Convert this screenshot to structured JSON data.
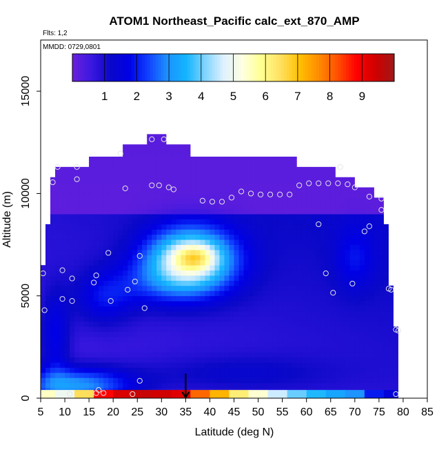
{
  "chart_data": {
    "type": "heatmap",
    "title": "ATOM1 Northeast_Pacific calc_ext_870_AMP",
    "annotations": [
      "Flts: 1,2",
      "MMDD: 0729,0801"
    ],
    "xlabel": "Latitude (deg N)",
    "ylabel": "Altitude (m)",
    "xlim": [
      5,
      85
    ],
    "ylim": [
      0,
      17500
    ],
    "x_ticks": [
      5,
      10,
      15,
      20,
      25,
      30,
      35,
      40,
      45,
      50,
      55,
      60,
      65,
      70,
      75,
      80,
      85
    ],
    "y_ticks": [
      0,
      5000,
      10000,
      15000
    ],
    "colorbar": {
      "min": 0,
      "max": 10,
      "tick_values": [
        1,
        2,
        3,
        4,
        5,
        6,
        7,
        8,
        9
      ],
      "tick_labels": [
        "1",
        "2",
        "3",
        "4",
        "5",
        "6",
        "7",
        "8",
        "9"
      ],
      "colors": [
        "#6a1fdc",
        "#3b18e0",
        "#0a08c8",
        "#0000e6",
        "#1040ff",
        "#1e90ff",
        "#12b4ff",
        "#7fd4ff",
        "#dff1ff",
        "#ffffe0",
        "#ffff90",
        "#ffe060",
        "#ffc000",
        "#ff8c00",
        "#ff5000",
        "#ff0000",
        "#d00000",
        "#a01818"
      ]
    },
    "field_blobs": [
      {
        "x": 36,
        "y": 6800,
        "sx": 9,
        "sy": 1500,
        "value": 4.2
      },
      {
        "x": 37,
        "y": 6900,
        "sx": 4,
        "sy": 600,
        "value": 1.5
      },
      {
        "x": 30,
        "y": 5600,
        "sx": 12,
        "sy": 1200,
        "value": 1.0
      },
      {
        "x": 12,
        "y": 600,
        "sx": 12,
        "sy": 900,
        "value": 2.6
      },
      {
        "x": 8,
        "y": 3000,
        "sx": 3,
        "sy": 2200,
        "value": 1.2
      },
      {
        "x": 18,
        "y": 4800,
        "sx": 6,
        "sy": 1300,
        "value": 1.0
      },
      {
        "x": 70,
        "y": 6800,
        "sx": 4,
        "sy": 1500,
        "value": 0.8
      },
      {
        "x": 45,
        "y": 1200,
        "sx": 20,
        "sy": 900,
        "value": 0.6
      }
    ],
    "surface_row": [
      {
        "x": 6,
        "value": 5.5
      },
      {
        "x": 10,
        "value": 5.0
      },
      {
        "x": 14,
        "value": 6.5
      },
      {
        "x": 18,
        "value": 8.8
      },
      {
        "x": 22,
        "value": 9.3
      },
      {
        "x": 26,
        "value": 9.5
      },
      {
        "x": 30,
        "value": 9.4
      },
      {
        "x": 34,
        "value": 9.2
      },
      {
        "x": 38,
        "value": 8.0
      },
      {
        "x": 42,
        "value": 7.2
      },
      {
        "x": 46,
        "value": 6.2
      },
      {
        "x": 50,
        "value": 5.4
      },
      {
        "x": 54,
        "value": 4.6
      },
      {
        "x": 58,
        "value": 4.0
      },
      {
        "x": 62,
        "value": 3.6
      },
      {
        "x": 66,
        "value": 3.3
      },
      {
        "x": 70,
        "value": 3.0
      },
      {
        "x": 74,
        "value": 2.0
      },
      {
        "x": 78,
        "value": 1.5
      }
    ],
    "top_profile": [
      {
        "x": 8,
        "top": 11300
      },
      {
        "x": 15,
        "top": 11300
      },
      {
        "x": 15,
        "top": 11800
      },
      {
        "x": 22,
        "top": 11800
      },
      {
        "x": 22,
        "top": 12400
      },
      {
        "x": 27,
        "top": 12400
      },
      {
        "x": 27,
        "top": 12900
      },
      {
        "x": 31,
        "top": 12900
      },
      {
        "x": 31,
        "top": 12400
      },
      {
        "x": 36,
        "top": 12400
      },
      {
        "x": 36,
        "top": 11800
      },
      {
        "x": 58,
        "top": 11800
      },
      {
        "x": 58,
        "top": 11300
      },
      {
        "x": 66,
        "top": 11300
      },
      {
        "x": 66,
        "top": 10800
      },
      {
        "x": 70,
        "top": 10800
      },
      {
        "x": 70,
        "top": 10300
      },
      {
        "x": 74,
        "top": 10300
      },
      {
        "x": 74,
        "top": 9800
      },
      {
        "x": 76,
        "top": 9800
      },
      {
        "x": 76,
        "top": 8500
      },
      {
        "x": 77,
        "top": 8500
      },
      {
        "x": 77,
        "top": 5500
      },
      {
        "x": 78,
        "top": 5500
      },
      {
        "x": 78,
        "top": 3500
      },
      {
        "x": 79,
        "top": 3500
      },
      {
        "x": 79,
        "top": 0
      }
    ],
    "left_profile": [
      {
        "y": 0,
        "x": 5
      },
      {
        "y": 6500,
        "x": 5
      },
      {
        "y": 6500,
        "x": 6
      },
      {
        "y": 8500,
        "x": 6
      },
      {
        "y": 8500,
        "x": 7
      },
      {
        "y": 10800,
        "x": 7
      },
      {
        "y": 10800,
        "x": 8
      },
      {
        "y": 11300,
        "x": 8
      }
    ],
    "flight_points": [
      {
        "x": 8.5,
        "y": 11300
      },
      {
        "x": 12.5,
        "y": 11300
      },
      {
        "x": 21.5,
        "y": 11950
      },
      {
        "x": 28,
        "y": 12650
      },
      {
        "x": 30.5,
        "y": 12650
      },
      {
        "x": 7.5,
        "y": 10550
      },
      {
        "x": 12.5,
        "y": 10700
      },
      {
        "x": 22.5,
        "y": 10250
      },
      {
        "x": 28,
        "y": 10400
      },
      {
        "x": 29.5,
        "y": 10400
      },
      {
        "x": 31.5,
        "y": 10300
      },
      {
        "x": 32.5,
        "y": 10200
      },
      {
        "x": 38.5,
        "y": 9650
      },
      {
        "x": 40.5,
        "y": 9600
      },
      {
        "x": 42.5,
        "y": 9600
      },
      {
        "x": 44.5,
        "y": 9800
      },
      {
        "x": 46.5,
        "y": 10100
      },
      {
        "x": 48.5,
        "y": 10000
      },
      {
        "x": 50.5,
        "y": 9950
      },
      {
        "x": 52.5,
        "y": 9950
      },
      {
        "x": 54.5,
        "y": 9950
      },
      {
        "x": 56.5,
        "y": 9950
      },
      {
        "x": 58.5,
        "y": 10400
      },
      {
        "x": 60.5,
        "y": 10500
      },
      {
        "x": 62.5,
        "y": 10500
      },
      {
        "x": 64.5,
        "y": 10500
      },
      {
        "x": 66.5,
        "y": 10500
      },
      {
        "x": 68.5,
        "y": 10450
      },
      {
        "x": 70,
        "y": 10300
      },
      {
        "x": 67,
        "y": 11300
      },
      {
        "x": 73,
        "y": 9850
      },
      {
        "x": 75.5,
        "y": 9750
      },
      {
        "x": 75.5,
        "y": 9200
      },
      {
        "x": 62.5,
        "y": 8500
      },
      {
        "x": 73,
        "y": 8400
      },
      {
        "x": 72,
        "y": 8150
      },
      {
        "x": 19,
        "y": 7100
      },
      {
        "x": 25.5,
        "y": 6950
      },
      {
        "x": 5.5,
        "y": 6100
      },
      {
        "x": 9.5,
        "y": 6250
      },
      {
        "x": 11.5,
        "y": 5850
      },
      {
        "x": 16.5,
        "y": 6000
      },
      {
        "x": 24.5,
        "y": 5700
      },
      {
        "x": 23,
        "y": 5300
      },
      {
        "x": 16,
        "y": 5650
      },
      {
        "x": 9.5,
        "y": 4850
      },
      {
        "x": 11.5,
        "y": 4750
      },
      {
        "x": 19.5,
        "y": 4750
      },
      {
        "x": 26.5,
        "y": 4400
      },
      {
        "x": 5.8,
        "y": 4300
      },
      {
        "x": 64,
        "y": 6100
      },
      {
        "x": 69.5,
        "y": 5600
      },
      {
        "x": 65.5,
        "y": 5150
      },
      {
        "x": 77,
        "y": 5350
      },
      {
        "x": 77.5,
        "y": 5300
      },
      {
        "x": 78.5,
        "y": 3350
      },
      {
        "x": 79,
        "y": 3300
      },
      {
        "x": 25.5,
        "y": 850
      },
      {
        "x": 17,
        "y": 400
      },
      {
        "x": 18,
        "y": 250
      },
      {
        "x": 11,
        "y": 200
      },
      {
        "x": 16.5,
        "y": 250
      },
      {
        "x": 24,
        "y": 200
      },
      {
        "x": 78.5,
        "y": 200
      }
    ],
    "marker": {
      "x": 35,
      "arrow": "down"
    }
  }
}
